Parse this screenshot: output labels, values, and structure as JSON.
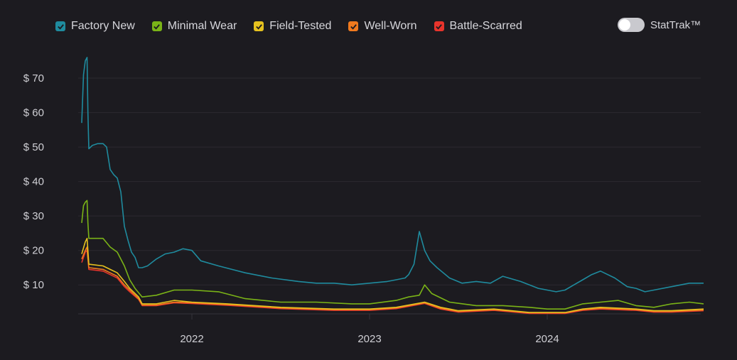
{
  "legend": {
    "series": [
      {
        "label": "Factory New",
        "color": "#1f8b9e"
      },
      {
        "label": "Minimal Wear",
        "color": "#7ab317"
      },
      {
        "label": "Field-Tested",
        "color": "#e6c21f"
      },
      {
        "label": "Well-Worn",
        "color": "#f07a1e"
      },
      {
        "label": "Battle-Scarred",
        "color": "#e8342c"
      }
    ]
  },
  "toggle": {
    "label": "StatTrak™",
    "on": false
  },
  "chart_data": {
    "type": "line",
    "title": "",
    "xlabel": "",
    "ylabel": "",
    "ylim": [
      1,
      76
    ],
    "y_ticks": [
      "$ 10",
      "$ 20",
      "$ 30",
      "$ 40",
      "$ 50",
      "$ 60",
      "$ 70"
    ],
    "y_tick_values": [
      10,
      20,
      30,
      40,
      50,
      60,
      70
    ],
    "xlim": [
      2021.38,
      2024.88
    ],
    "x_ticks": [
      "2022",
      "2023",
      "2024"
    ],
    "x_tick_values": [
      2022.0,
      2023.0,
      2024.0
    ],
    "grid": true,
    "legend_position": "top-left",
    "series": [
      {
        "name": "Factory New",
        "color": "#1f8b9e",
        "x": [
          2021.38,
          2021.39,
          2021.4,
          2021.41,
          2021.415,
          2021.42,
          2021.44,
          2021.47,
          2021.5,
          2021.52,
          2021.54,
          2021.56,
          2021.58,
          2021.6,
          2021.62,
          2021.64,
          2021.66,
          2021.68,
          2021.7,
          2021.72,
          2021.75,
          2021.8,
          2021.85,
          2021.9,
          2021.95,
          2022.0,
          2022.05,
          2022.15,
          2022.3,
          2022.45,
          2022.6,
          2022.7,
          2022.8,
          2022.9,
          2023.0,
          2023.1,
          2023.15,
          2023.2,
          2023.22,
          2023.25,
          2023.28,
          2023.31,
          2023.34,
          2023.38,
          2023.45,
          2023.52,
          2023.6,
          2023.68,
          2023.75,
          2023.85,
          2023.95,
          2024.0,
          2024.05,
          2024.1,
          2024.15,
          2024.2,
          2024.25,
          2024.3,
          2024.38,
          2024.45,
          2024.5,
          2024.55,
          2024.6,
          2024.7,
          2024.8,
          2024.88
        ],
        "values": [
          57,
          71,
          75,
          76,
          60,
          49.5,
          50.5,
          51,
          51,
          50,
          43.5,
          42,
          41,
          37,
          27,
          23,
          19.5,
          18,
          15,
          15,
          15.5,
          17.5,
          19,
          19.5,
          20.5,
          20,
          17,
          15.5,
          13.5,
          12,
          11,
          10.5,
          10.5,
          10,
          10.5,
          11,
          11.5,
          12,
          13,
          16,
          25.5,
          20,
          17,
          15,
          12,
          10.5,
          11,
          10.5,
          12.5,
          11,
          9,
          8.5,
          8,
          8.5,
          10,
          11.5,
          13,
          14,
          12,
          9.5,
          9,
          8,
          8.5,
          9.5,
          10.5,
          10.5
        ]
      },
      {
        "name": "Minimal Wear",
        "color": "#7ab317",
        "x": [
          2021.38,
          2021.39,
          2021.4,
          2021.41,
          2021.415,
          2021.42,
          2021.45,
          2021.5,
          2021.54,
          2021.58,
          2021.62,
          2021.65,
          2021.68,
          2021.72,
          2021.8,
          2021.9,
          2022.0,
          2022.15,
          2022.3,
          2022.5,
          2022.7,
          2022.9,
          2023.0,
          2023.15,
          2023.22,
          2023.28,
          2023.31,
          2023.35,
          2023.45,
          2023.6,
          2023.75,
          2023.9,
          2024.0,
          2024.1,
          2024.2,
          2024.3,
          2024.4,
          2024.5,
          2024.6,
          2024.7,
          2024.8,
          2024.88
        ],
        "values": [
          28,
          33,
          34,
          34.5,
          28,
          23.5,
          23.5,
          23.5,
          21,
          19.5,
          15.5,
          11.5,
          9,
          6.5,
          7,
          8.5,
          8.5,
          8,
          6,
          5,
          5,
          4.5,
          4.5,
          5.5,
          6.5,
          7,
          10,
          7.5,
          5,
          4,
          4,
          3.5,
          3,
          3,
          4.5,
          5,
          5.5,
          4,
          3.5,
          4.5,
          5,
          4.5
        ]
      },
      {
        "name": "Field-Tested",
        "color": "#e6c21f",
        "x": [
          2021.38,
          2021.4,
          2021.41,
          2021.415,
          2021.42,
          2021.5,
          2021.54,
          2021.58,
          2021.62,
          2021.65,
          2021.7,
          2021.72,
          2021.8,
          2021.9,
          2022.0,
          2022.2,
          2022.5,
          2022.8,
          2023.0,
          2023.15,
          2023.31,
          2023.4,
          2023.5,
          2023.7,
          2023.9,
          2024.0,
          2024.1,
          2024.2,
          2024.3,
          2024.5,
          2024.6,
          2024.7,
          2024.88
        ],
        "values": [
          19,
          22.5,
          23.5,
          20,
          16,
          15.5,
          14.5,
          13.5,
          11,
          9,
          6.5,
          4.5,
          4.5,
          5.5,
          5,
          4.5,
          3.5,
          3,
          3,
          3.5,
          5,
          3.5,
          2.5,
          3,
          2,
          2,
          2,
          3,
          3.5,
          3,
          2.5,
          2.5,
          3
        ]
      },
      {
        "name": "Well-Worn",
        "color": "#f07a1e",
        "x": [
          2021.38,
          2021.4,
          2021.41,
          2021.415,
          2021.42,
          2021.5,
          2021.54,
          2021.58,
          2021.62,
          2021.65,
          2021.7,
          2021.72,
          2021.8,
          2021.9,
          2022.0,
          2022.2,
          2022.5,
          2022.8,
          2023.0,
          2023.15,
          2023.31,
          2023.4,
          2023.5,
          2023.7,
          2023.9,
          2024.0,
          2024.1,
          2024.2,
          2024.3,
          2024.5,
          2024.6,
          2024.7,
          2024.88
        ],
        "values": [
          17.5,
          20,
          21,
          18,
          15,
          14.5,
          13.5,
          12.5,
          10,
          8.5,
          6,
          4.2,
          4.2,
          5,
          4.8,
          4.3,
          3.3,
          2.8,
          2.8,
          3.3,
          4.8,
          3.2,
          2.3,
          2.8,
          1.9,
          1.9,
          1.9,
          2.8,
          3.2,
          2.8,
          2.3,
          2.3,
          2.7
        ]
      },
      {
        "name": "Battle-Scarred",
        "color": "#e8342c",
        "x": [
          2021.38,
          2021.4,
          2021.41,
          2021.415,
          2021.42,
          2021.5,
          2021.54,
          2021.58,
          2021.62,
          2021.65,
          2021.7,
          2021.72,
          2021.8,
          2021.9,
          2022.0,
          2022.2,
          2022.5,
          2022.8,
          2023.0,
          2023.15,
          2023.31,
          2023.4,
          2023.5,
          2023.7,
          2023.9,
          2024.0,
          2024.1,
          2024.2,
          2024.3,
          2024.5,
          2024.6,
          2024.7,
          2024.88
        ],
        "values": [
          16.5,
          19.5,
          20,
          17.5,
          14.5,
          14,
          13,
          12,
          9.5,
          8,
          5.8,
          4,
          4,
          4.8,
          4.6,
          4.1,
          3.1,
          2.6,
          2.6,
          3.1,
          4.6,
          3,
          2.1,
          2.6,
          1.7,
          1.7,
          1.7,
          2.6,
          3,
          2.6,
          2.1,
          2.1,
          2.5
        ]
      }
    ]
  }
}
